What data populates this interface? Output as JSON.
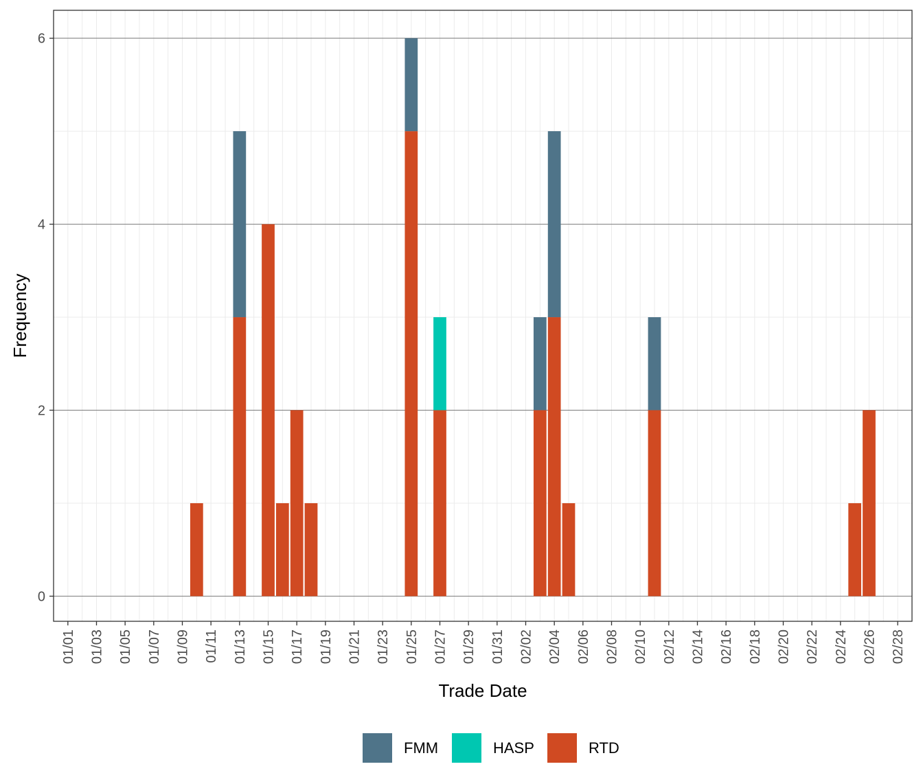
{
  "chart_data": {
    "type": "bar",
    "stacked": true,
    "xlabel": "Trade Date",
    "ylabel": "Frequency",
    "ylim": [
      -0.27,
      6.3
    ],
    "y_ticks": [
      0,
      2,
      4,
      6
    ],
    "y_minor_ticks": [
      1,
      3,
      5
    ],
    "x_range_days": [
      -1,
      59
    ],
    "x_ticks": [
      "01/01",
      "01/03",
      "01/05",
      "01/07",
      "01/09",
      "01/11",
      "01/13",
      "01/15",
      "01/17",
      "01/19",
      "01/21",
      "01/23",
      "01/25",
      "01/27",
      "01/29",
      "01/31",
      "02/02",
      "02/04",
      "02/06",
      "02/08",
      "02/10",
      "02/12",
      "02/14",
      "02/16",
      "02/18",
      "02/20",
      "02/22",
      "02/24",
      "02/26",
      "02/28"
    ],
    "categories": [
      "01/10",
      "01/13",
      "01/15",
      "01/16",
      "01/17",
      "01/18",
      "01/25",
      "01/27",
      "02/03",
      "02/04",
      "02/05",
      "02/11",
      "02/25",
      "02/26"
    ],
    "series": [
      {
        "name": "RTD",
        "color": "#D04A22",
        "values": [
          1,
          3,
          4,
          1,
          2,
          1,
          5,
          2,
          2,
          3,
          1,
          2,
          1,
          2
        ]
      },
      {
        "name": "HASP",
        "color": "#00C7B1",
        "values": [
          0,
          0,
          0,
          0,
          0,
          0,
          0,
          1,
          0,
          0,
          0,
          0,
          0,
          0
        ]
      },
      {
        "name": "FMM",
        "color": "#4F7489",
        "values": [
          0,
          2,
          0,
          0,
          0,
          0,
          1,
          0,
          1,
          2,
          0,
          1,
          0,
          0
        ]
      }
    ],
    "legend": {
      "position": "bottom",
      "items": [
        {
          "name": "FMM",
          "color": "#4F7489"
        },
        {
          "name": "HASP",
          "color": "#00C7B1"
        },
        {
          "name": "RTD",
          "color": "#D04A22"
        }
      ]
    },
    "grid": true
  }
}
